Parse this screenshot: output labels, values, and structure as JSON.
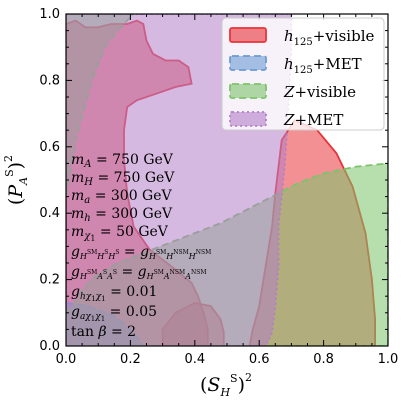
{
  "chart_data": {
    "type": "area",
    "xlabel": "(S^S_H)^2",
    "ylabel": "(P^S_A)^2",
    "xlim": [
      0.0,
      1.0
    ],
    "ylim": [
      0.0,
      1.0
    ],
    "x_ticks": [
      0.0,
      0.2,
      0.4,
      0.6,
      0.8,
      1.0
    ],
    "y_ticks": [
      0.0,
      0.2,
      0.4,
      0.6,
      0.8,
      1.0
    ],
    "x_tick_labels": [
      "0.0",
      "0.2",
      "0.4",
      "0.6",
      "0.8",
      "1.0"
    ],
    "y_tick_labels": [
      "0.0",
      "0.2",
      "0.4",
      "0.6",
      "0.8",
      "1.0"
    ],
    "grid": false,
    "legend_placement": "top-right",
    "series": [
      {
        "name": "h125+visible",
        "color": "#e8343a",
        "line_style": "solid",
        "regions": [
          [
            [
              0.0,
              0.97
            ],
            [
              0.03,
              0.98
            ],
            [
              0.06,
              0.96
            ],
            [
              0.1,
              0.96
            ],
            [
              0.14,
              0.97
            ],
            [
              0.19,
              0.97
            ],
            [
              0.22,
              0.98
            ],
            [
              0.24,
              0.97
            ],
            [
              0.25,
              0.92
            ],
            [
              0.27,
              0.88
            ],
            [
              0.31,
              0.86
            ],
            [
              0.35,
              0.86
            ],
            [
              0.38,
              0.84
            ],
            [
              0.39,
              0.79
            ],
            [
              0.34,
              0.78
            ],
            [
              0.28,
              0.76
            ],
            [
              0.22,
              0.74
            ],
            [
              0.19,
              0.72
            ],
            [
              0.18,
              0.65
            ],
            [
              0.18,
              0.56
            ],
            [
              0.19,
              0.46
            ],
            [
              0.21,
              0.36
            ],
            [
              0.26,
              0.29
            ],
            [
              0.34,
              0.23
            ],
            [
              0.39,
              0.19
            ],
            [
              0.41,
              0.15
            ],
            [
              0.43,
              0.09
            ],
            [
              0.44,
              0.05
            ],
            [
              0.44,
              0.0
            ],
            [
              0.0,
              0.0
            ]
          ],
          [
            [
              0.3,
              0.0
            ],
            [
              0.3,
              0.05
            ],
            [
              0.34,
              0.1
            ],
            [
              0.4,
              0.13
            ],
            [
              0.45,
              0.12
            ],
            [
              0.48,
              0.08
            ],
            [
              0.49,
              0.04
            ],
            [
              0.49,
              0.0
            ]
          ],
          [
            [
              0.57,
              0.0
            ],
            [
              0.58,
              0.05
            ],
            [
              0.6,
              0.12
            ],
            [
              0.62,
              0.24
            ],
            [
              0.64,
              0.36
            ],
            [
              0.65,
              0.46
            ],
            [
              0.66,
              0.54
            ],
            [
              0.67,
              0.62
            ],
            [
              0.71,
              0.68
            ],
            [
              0.78,
              0.65
            ],
            [
              0.84,
              0.58
            ],
            [
              0.89,
              0.48
            ],
            [
              0.93,
              0.34
            ],
            [
              0.95,
              0.2
            ],
            [
              0.96,
              0.08
            ],
            [
              0.96,
              0.0
            ]
          ]
        ]
      },
      {
        "name": "h125+MET",
        "color": "#6c9bd2",
        "line_style": "dashed",
        "regions": [
          [
            [
              0.0,
              0.0
            ],
            [
              0.0,
              0.13
            ],
            [
              0.07,
              0.12
            ],
            [
              0.15,
              0.09
            ],
            [
              0.21,
              0.04
            ],
            [
              0.24,
              0.0
            ]
          ]
        ]
      },
      {
        "name": "Z+visible",
        "color": "#7cc46a",
        "line_style": "dashed",
        "regions": [
          [
            [
              0.0,
              0.45
            ],
            [
              0.03,
              0.62
            ],
            [
              0.08,
              0.8
            ],
            [
              0.12,
              0.9
            ],
            [
              0.16,
              0.95
            ],
            [
              0.21,
              1.0
            ],
            [
              0.0,
              1.0
            ]
          ],
          [
            [
              0.0,
              0.0
            ],
            [
              0.0,
              0.1
            ],
            [
              0.02,
              0.12
            ],
            [
              0.05,
              0.17
            ],
            [
              0.09,
              0.21
            ],
            [
              0.16,
              0.25
            ],
            [
              0.24,
              0.28
            ],
            [
              0.32,
              0.31
            ],
            [
              0.4,
              0.34
            ],
            [
              0.48,
              0.37
            ],
            [
              0.56,
              0.41
            ],
            [
              0.64,
              0.45
            ],
            [
              0.72,
              0.49
            ],
            [
              0.8,
              0.52
            ],
            [
              0.9,
              0.54
            ],
            [
              1.0,
              0.55
            ],
            [
              1.0,
              0.0
            ]
          ]
        ]
      },
      {
        "name": "Z+MET",
        "color": "#b27fc6",
        "line_style": "dotted",
        "regions": [
          [
            [
              0.0,
              1.0
            ],
            [
              0.7,
              1.0
            ],
            [
              0.7,
              0.9
            ],
            [
              0.69,
              0.7
            ],
            [
              0.68,
              0.55
            ],
            [
              0.67,
              0.45
            ],
            [
              0.66,
              0.36
            ],
            [
              0.66,
              0.24
            ],
            [
              0.65,
              0.12
            ],
            [
              0.64,
              0.04
            ],
            [
              0.62,
              0.0
            ],
            [
              0.0,
              0.0
            ]
          ]
        ]
      }
    ],
    "annotations": [
      "m_A = 750 GeV",
      "m_H = 750 GeV",
      "m_a = 300 GeV",
      "m_h = 300 GeV",
      "m_χ1 = 50 GeV",
      "g_{H^SM H^S H^S} = g_{H^SM H^NSM H^NSM}",
      "g_{H^SM A^S A^S} = g_{H^SM A^NSM A^NSM}",
      "g_{hχ1χ1} = 0.01",
      "g_{aχ1χ1} = 0.05",
      "tan β = 2"
    ]
  }
}
